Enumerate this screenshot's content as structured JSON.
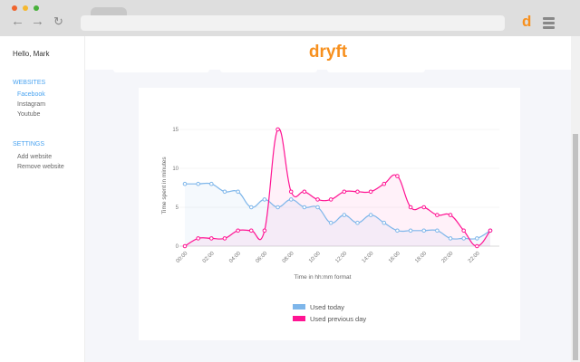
{
  "browser": {
    "extension_letter": "d",
    "icons": [
      "back-arrow-icon",
      "forward-arrow-icon",
      "reload-icon",
      "menu-icon"
    ]
  },
  "sidebar": {
    "greeting": "Hello, Mark",
    "websites_heading": "WEBSITES",
    "websites": [
      "Facebook",
      "Instagram",
      "Youtube"
    ],
    "settings_heading": "SETTINGS",
    "settings": [
      "Add website",
      "Remove website"
    ]
  },
  "header": {
    "logo": "dryft"
  },
  "colors": {
    "accent": "#f7901e",
    "today": "#7eb6ea",
    "previous": "#ff1493",
    "link": "#4aa3f0"
  },
  "chart_data": {
    "type": "line",
    "xlabel": "Time in hh:mm format",
    "ylabel": "Time spent in minutes",
    "ylim": [
      0,
      15
    ],
    "yticks": [
      "0",
      "5",
      "10",
      "15"
    ],
    "x": [
      "00:00",
      "01:00",
      "02:00",
      "03:00",
      "04:00",
      "05:00",
      "06:00",
      "07:00",
      "08:00",
      "09:00",
      "10:00",
      "11:00",
      "12:00",
      "13:00",
      "14:00",
      "15:00",
      "16:00",
      "17:00",
      "18:00",
      "19:00",
      "20:00",
      "21:00",
      "22:00",
      "23:00"
    ],
    "xticks": [
      "00:00",
      "02:00",
      "04:00",
      "06:00",
      "08:00",
      "10:00",
      "12:00",
      "14:00",
      "16:00",
      "18:00",
      "20:00",
      "22:00"
    ],
    "grid": true,
    "legend": "bottom",
    "series": [
      {
        "name": "Used today",
        "color": "#7eb6ea",
        "values": [
          8,
          8,
          8,
          7,
          7,
          5,
          6,
          5,
          6,
          5,
          5,
          3,
          4,
          3,
          4,
          3,
          2,
          2,
          2,
          2,
          1,
          1,
          1,
          2
        ]
      },
      {
        "name": "Used previous day",
        "color": "#ff1493",
        "values": [
          0,
          1,
          1,
          1,
          2,
          2,
          2,
          15,
          7,
          7,
          6,
          6,
          7,
          7,
          7,
          8,
          9,
          5,
          5,
          4,
          4,
          2,
          0,
          2
        ]
      }
    ]
  }
}
